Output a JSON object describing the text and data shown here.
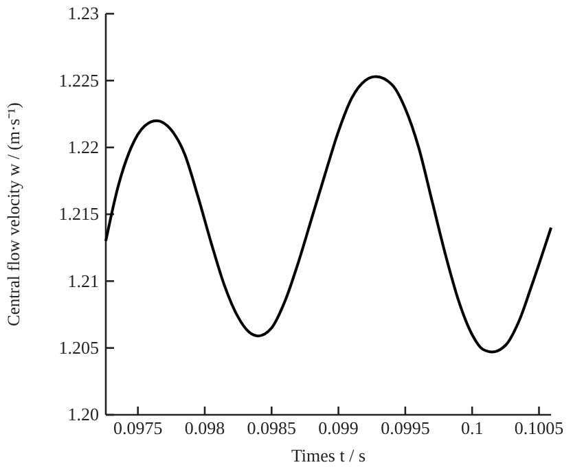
{
  "chart_data": {
    "type": "line",
    "xlabel": "Times t / s",
    "ylabel": "Central flow velocity w / (m·s⁻¹)",
    "xlim": [
      0.09726,
      0.10059
    ],
    "xticks": [
      0.0975,
      0.098,
      0.0985,
      0.099,
      0.0995,
      0.1,
      0.1005
    ],
    "ylim": [
      1.2,
      1.23
    ],
    "yticks": [
      {
        "value": 1.2,
        "label": "1.20"
      },
      1.205,
      1.21,
      1.215,
      1.22,
      1.225,
      1.23
    ],
    "marker": "none",
    "line_style": "solid",
    "series": [
      {
        "color": "#000000",
        "x": [
          0.09726,
          0.09735,
          0.09745,
          0.09755,
          0.09764,
          0.09775,
          0.09785,
          0.09795,
          0.09805,
          0.09815,
          0.09825,
          0.09833,
          0.0984,
          0.0985,
          0.0986,
          0.0987,
          0.0988,
          0.0989,
          0.099,
          0.0991,
          0.0992,
          0.09928,
          0.0994,
          0.0995,
          0.0996,
          0.0997,
          0.0998,
          0.0999,
          0.1,
          0.10008,
          0.10015,
          0.10025,
          0.10035,
          0.10045,
          0.10059
        ],
        "values": [
          1.213,
          1.217,
          1.22,
          1.2216,
          1.222,
          1.2213,
          1.2195,
          1.2163,
          1.2128,
          1.2096,
          1.2073,
          1.2062,
          1.2059,
          1.2065,
          1.2085,
          1.2114,
          1.2147,
          1.218,
          1.2212,
          1.2237,
          1.225,
          1.2253,
          1.2247,
          1.2229,
          1.22,
          1.216,
          1.212,
          1.2085,
          1.206,
          1.2049,
          1.2047,
          1.2052,
          1.207,
          1.2098,
          1.214
        ]
      }
    ]
  }
}
